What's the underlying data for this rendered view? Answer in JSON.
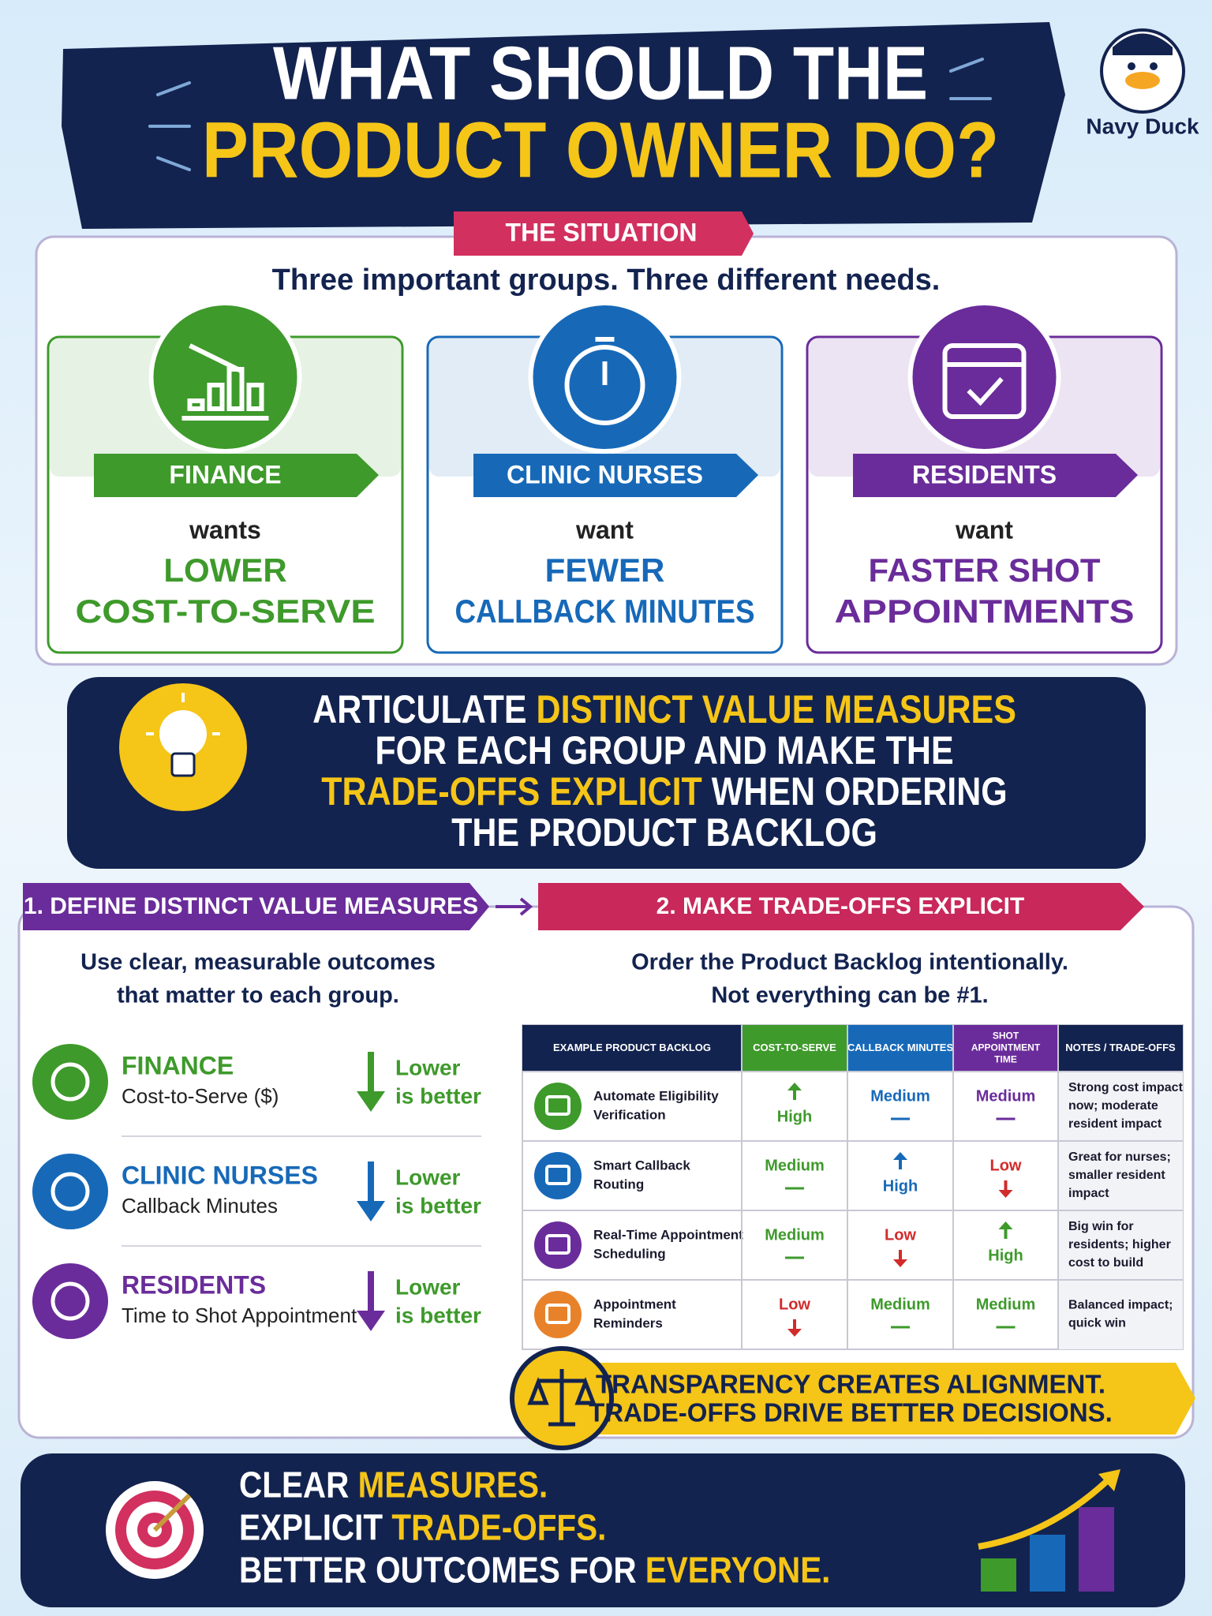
{
  "brand": "Navy Duck",
  "header": {
    "title_line1": "WHAT SHOULD THE",
    "title_line2": "PRODUCT OWNER DO?"
  },
  "situation": {
    "label": "THE SITUATION",
    "subtitle": "Three important groups. Three different needs.",
    "groups": [
      {
        "name": "FINANCE",
        "verb": "wants",
        "need_line1": "LOWER",
        "need_line2": "COST-TO-SERVE",
        "color": "#3e9a2b"
      },
      {
        "name": "CLINIC NURSES",
        "verb": "want",
        "need_line1": "FEWER",
        "need_line2": "CALLBACK MINUTES",
        "color": "#1769b8"
      },
      {
        "name": "RESIDENTS",
        "verb": "want",
        "need_line1": "FASTER SHOT",
        "need_line2": "APPOINTMENTS",
        "color": "#6a2c9a"
      }
    ]
  },
  "key_message": {
    "lines": [
      [
        {
          "text": "ARTICULATE ",
          "highlight": false
        },
        {
          "text": "DISTINCT VALUE MEASURES",
          "highlight": true
        }
      ],
      [
        {
          "text": "FOR EACH GROUP AND MAKE THE",
          "highlight": false
        }
      ],
      [
        {
          "text": "TRADE-OFFS EXPLICIT",
          "highlight": true
        },
        {
          "text": " WHEN ORDERING",
          "highlight": false
        }
      ],
      [
        {
          "text": "THE PRODUCT BACKLOG",
          "highlight": false
        }
      ]
    ]
  },
  "step1": {
    "label": "1. DEFINE DISTINCT VALUE MEASURES",
    "intro_line1": "Use clear, measurable outcomes",
    "intro_line2": "that matter to each group.",
    "measures": [
      {
        "group": "FINANCE",
        "metric": "Cost-to-Serve ($)",
        "direction_line1": "Lower",
        "direction_line2": "is better",
        "color": "#3e9a2b"
      },
      {
        "group": "CLINIC NURSES",
        "metric": "Callback Minutes",
        "direction_line1": "Lower",
        "direction_line2": "is better",
        "color": "#1769b8"
      },
      {
        "group": "RESIDENTS",
        "metric": "Time to Shot Appointment",
        "direction_line1": "Lower",
        "direction_line2": "is better",
        "color": "#6a2c9a"
      }
    ]
  },
  "step2": {
    "label": "2. MAKE TRADE-OFFS EXPLICIT",
    "intro_line1": "Order the Product Backlog intentionally.",
    "intro_line2": "Not everything can be #1.",
    "table": {
      "headers": [
        {
          "lines": [
            "EXAMPLE PRODUCT BACKLOG"
          ],
          "color": "#13234f"
        },
        {
          "lines": [
            "COST-TO-SERVE"
          ],
          "color": "#3e9a2b"
        },
        {
          "lines": [
            "CALLBACK MINUTES"
          ],
          "color": "#1769b8"
        },
        {
          "lines": [
            "SHOT",
            "APPOINTMENT",
            "TIME"
          ],
          "color": "#6a2c9a"
        },
        {
          "lines": [
            "NOTES / TRADE-OFFS"
          ],
          "color": "#13234f"
        }
      ],
      "rows": [
        {
          "item_lines": [
            "Automate Eligibility",
            "Verification"
          ],
          "color": "#3e9a2b",
          "cells": [
            {
              "rating": "High",
              "trend": "up",
              "color": "#3e9a2b"
            },
            {
              "rating": "Medium",
              "trend": "flat",
              "color": "#1769b8"
            },
            {
              "rating": "Medium",
              "trend": "flat",
              "color": "#6a2c9a"
            }
          ],
          "note_lines": [
            "Strong cost impact",
            "now; moderate",
            "resident impact"
          ]
        },
        {
          "item_lines": [
            "Smart Callback",
            "Routing"
          ],
          "color": "#1769b8",
          "cells": [
            {
              "rating": "Medium",
              "trend": "flat",
              "color": "#3e9a2b"
            },
            {
              "rating": "High",
              "trend": "up",
              "color": "#1769b8"
            },
            {
              "rating": "Low",
              "trend": "down",
              "color": "#d22b2b"
            }
          ],
          "note_lines": [
            "Great for nurses;",
            "smaller resident",
            "impact"
          ]
        },
        {
          "item_lines": [
            "Real-Time Appointment",
            "Scheduling"
          ],
          "color": "#6a2c9a",
          "cells": [
            {
              "rating": "Medium",
              "trend": "flat",
              "color": "#3e9a2b"
            },
            {
              "rating": "Low",
              "trend": "down",
              "color": "#d22b2b"
            },
            {
              "rating": "High",
              "trend": "up",
              "color": "#3e9a2b"
            }
          ],
          "note_lines": [
            "Big win for",
            "residents; higher",
            "cost to build"
          ]
        },
        {
          "item_lines": [
            "Appointment",
            "Reminders"
          ],
          "color": "#e8822a",
          "cells": [
            {
              "rating": "Low",
              "trend": "down",
              "color": "#d22b2b"
            },
            {
              "rating": "Medium",
              "trend": "flat",
              "color": "#3e9a2b"
            },
            {
              "rating": "Medium",
              "trend": "flat",
              "color": "#3e9a2b"
            }
          ],
          "note_lines": [
            "Balanced impact;",
            "quick win"
          ]
        }
      ]
    }
  },
  "banner": {
    "line1": "TRANSPARENCY CREATES ALIGNMENT.",
    "line2": "TRADE-OFFS DRIVE BETTER DECISIONS."
  },
  "footer": {
    "lines": [
      [
        {
          "text": "CLEAR ",
          "highlight": false
        },
        {
          "text": "MEASURES.",
          "highlight": true
        }
      ],
      [
        {
          "text": "EXPLICIT ",
          "highlight": false
        },
        {
          "text": "TRADE-OFFS.",
          "highlight": true
        }
      ],
      [
        {
          "text": "BETTER OUTCOMES FOR ",
          "highlight": false
        },
        {
          "text": "EVERYONE.",
          "highlight": true
        }
      ]
    ]
  }
}
